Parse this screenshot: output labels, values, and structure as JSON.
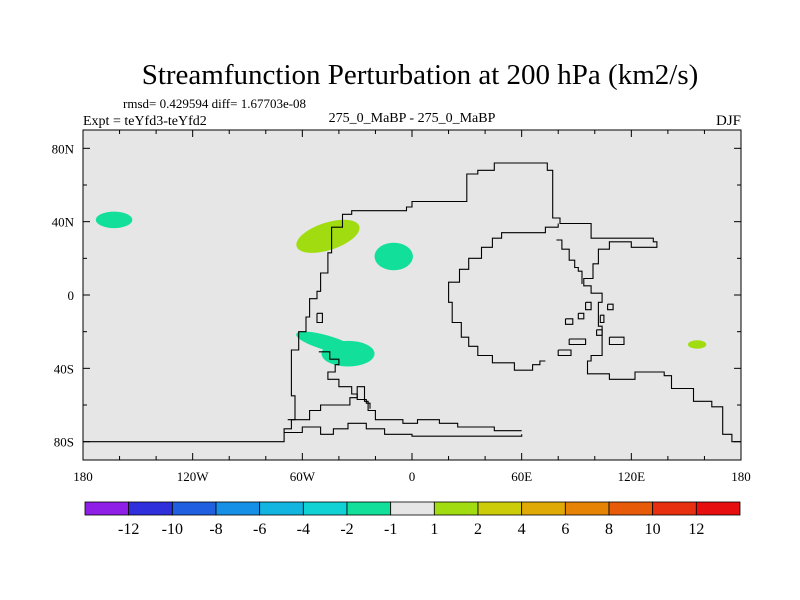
{
  "chart_data": {
    "type": "heatmap",
    "title": "Streamfunction Perturbation at 200 hPa (km2/s)",
    "stats_line": "rmsd= 0.429594 diff= 1.67703e-08",
    "experiment": "Expt = teYfd3-teYfd2",
    "subtitle": "275_0_MaBP - 275_0_MaBP",
    "season": "DJF",
    "x_axis": {
      "range": [
        -180,
        180
      ],
      "ticks": [
        -180,
        -120,
        -60,
        0,
        60,
        120,
        180
      ],
      "tick_labels": [
        "180",
        "120W",
        "60W",
        "0",
        "60E",
        "120E",
        "180"
      ]
    },
    "y_axis": {
      "range": [
        -90,
        90
      ],
      "ticks": [
        80,
        40,
        0,
        -40,
        -80
      ],
      "tick_labels": [
        "80N",
        "40N",
        "0",
        "40S",
        "80S"
      ]
    },
    "colorbar": {
      "labels": [
        "-12",
        "-10",
        "-8",
        "-6",
        "-4",
        "-2",
        "-1",
        "1",
        "2",
        "4",
        "6",
        "8",
        "10",
        "12"
      ],
      "colors": [
        "#8f1fe6",
        "#2f2fdc",
        "#1f5fe0",
        "#1690e6",
        "#12b4e0",
        "#10d2d4",
        "#12e09a",
        "#e6e6e6",
        "#a0dc10",
        "#cccc08",
        "#e0aa06",
        "#e68204",
        "#e65a08",
        "#e63010",
        "#e60e0e"
      ]
    },
    "anomalies": [
      {
        "name": "north-pacific-east",
        "lon": -163,
        "lat": 41,
        "rlon": 10,
        "rlat": 4.5,
        "rot": 0,
        "color": "#12e09a"
      },
      {
        "name": "north-atlantic-west",
        "lon": -46,
        "lat": 32,
        "rlon": 18,
        "rlat": 7.5,
        "rot": -18,
        "color": "#a0dc10"
      },
      {
        "name": "north-atlantic-east",
        "lon": -10,
        "lat": 21,
        "rlon": 10.5,
        "rlat": 7.5,
        "rot": 0,
        "color": "#12e09a"
      },
      {
        "name": "south-atlantic-tail",
        "lon": -47,
        "lat": -26,
        "rlon": 17,
        "rlat": 4,
        "rot": 16,
        "color": "#12e09a"
      },
      {
        "name": "south-atlantic",
        "lon": -35,
        "lat": -32,
        "rlon": 14.5,
        "rlat": 7,
        "rot": 0,
        "color": "#12e09a"
      },
      {
        "name": "south-pacific-west",
        "lon": 156,
        "lat": -27,
        "rlon": 5,
        "rlat": 2.3,
        "rot": 0,
        "color": "#a0dc10"
      }
    ],
    "coastlines": [
      {
        "name": "main-continent-outline",
        "points": [
          [
            -180,
            -80
          ],
          [
            -70,
            -80
          ],
          [
            -70,
            -73
          ],
          [
            -66,
            -73
          ],
          [
            -66,
            -68
          ],
          [
            -64,
            -68
          ],
          [
            -64,
            -55
          ],
          [
            -66,
            -55
          ],
          [
            -66,
            -30
          ],
          [
            -62,
            -30
          ],
          [
            -62,
            -20
          ],
          [
            -58,
            -20
          ],
          [
            -58,
            -12
          ],
          [
            -56,
            -12
          ],
          [
            -56,
            -2
          ],
          [
            -52,
            -2
          ],
          [
            -52,
            2
          ],
          [
            -50,
            2
          ],
          [
            -50,
            12
          ],
          [
            -46,
            12
          ],
          [
            -46,
            23
          ],
          [
            -44,
            23
          ],
          [
            -44,
            37
          ],
          [
            -38,
            37
          ],
          [
            -38,
            44
          ],
          [
            -33,
            44
          ],
          [
            -33,
            46
          ],
          [
            -3,
            46
          ],
          [
            -3,
            48
          ],
          [
            0,
            48
          ],
          [
            0,
            51
          ],
          [
            30,
            51
          ],
          [
            30,
            66
          ],
          [
            36,
            66
          ],
          [
            36,
            68
          ],
          [
            45,
            68
          ],
          [
            45,
            72
          ],
          [
            74,
            72
          ],
          [
            74,
            68
          ],
          [
            77,
            68
          ],
          [
            77,
            42
          ],
          [
            81,
            42
          ],
          [
            81,
            39
          ],
          [
            98,
            39
          ],
          [
            98,
            31
          ],
          [
            132,
            31
          ],
          [
            132,
            29
          ],
          [
            134,
            29
          ],
          [
            134,
            26
          ],
          [
            120,
            26
          ],
          [
            120,
            29
          ],
          [
            108,
            29
          ],
          [
            108,
            25
          ],
          [
            102,
            25
          ],
          [
            102,
            17
          ],
          [
            99,
            17
          ],
          [
            99,
            9
          ],
          [
            94,
            9
          ],
          [
            94,
            5
          ],
          [
            98,
            5
          ],
          [
            98,
            1
          ],
          [
            104,
            1
          ],
          [
            104,
            -4
          ],
          [
            102,
            -4
          ],
          [
            102,
            -17
          ],
          [
            104,
            -17
          ],
          [
            104,
            -33
          ],
          [
            98,
            -33
          ],
          [
            98,
            -36
          ],
          [
            96,
            -36
          ],
          [
            96,
            -43
          ],
          [
            108,
            -43
          ],
          [
            108,
            -46
          ],
          [
            122,
            -46
          ],
          [
            122,
            -42
          ],
          [
            138,
            -42
          ],
          [
            138,
            -44
          ],
          [
            142,
            -44
          ],
          [
            142,
            -51
          ],
          [
            154,
            -51
          ],
          [
            154,
            -58
          ],
          [
            164,
            -58
          ],
          [
            164,
            -61
          ],
          [
            170,
            -61
          ],
          [
            170,
            -76
          ],
          [
            175,
            -76
          ],
          [
            175,
            -80
          ],
          [
            180,
            -80
          ]
        ]
      },
      {
        "name": "africa-west-coast",
        "points": [
          [
            80,
            39
          ],
          [
            80,
            37
          ],
          [
            73,
            37
          ],
          [
            73,
            34
          ],
          [
            49,
            34
          ],
          [
            49,
            31
          ],
          [
            44,
            31
          ],
          [
            44,
            26
          ],
          [
            38,
            26
          ],
          [
            38,
            20
          ],
          [
            31,
            20
          ],
          [
            31,
            14
          ],
          [
            26,
            14
          ],
          [
            26,
            7
          ],
          [
            20,
            7
          ],
          [
            20,
            -4
          ],
          [
            22,
            -4
          ],
          [
            22,
            -15
          ],
          [
            27,
            -15
          ],
          [
            27,
            -23
          ],
          [
            31,
            -23
          ],
          [
            31,
            -28
          ],
          [
            36,
            -28
          ],
          [
            36,
            -33
          ],
          [
            44,
            -33
          ],
          [
            44,
            -37
          ],
          [
            56,
            -37
          ],
          [
            56,
            -41
          ],
          [
            66,
            -41
          ],
          [
            66,
            -38
          ],
          [
            70,
            -38
          ],
          [
            70,
            -36
          ],
          [
            73,
            -36
          ]
        ]
      },
      {
        "name": "arabian-coast",
        "points": [
          [
            79,
            30
          ],
          [
            82,
            30
          ],
          [
            82,
            25
          ],
          [
            86,
            25
          ],
          [
            86,
            19
          ],
          [
            89,
            19
          ],
          [
            89,
            15
          ],
          [
            91,
            15
          ],
          [
            91,
            13
          ],
          [
            93,
            13
          ],
          [
            93,
            6
          ]
        ]
      },
      {
        "name": "south-atlantic-coast",
        "points": [
          [
            -51,
            -31
          ],
          [
            -45,
            -31
          ],
          [
            -45,
            -35
          ],
          [
            -40,
            -35
          ],
          [
            -40,
            -38
          ],
          [
            -42,
            -38
          ],
          [
            -42,
            -42
          ],
          [
            -46,
            -42
          ],
          [
            -46,
            -46
          ],
          [
            -40,
            -46
          ],
          [
            -40,
            -50
          ],
          [
            -33,
            -50
          ],
          [
            -33,
            -54
          ],
          [
            -30,
            -54
          ],
          [
            -30,
            -57
          ],
          [
            -25,
            -57
          ],
          [
            -25,
            -59
          ],
          [
            -23,
            -59
          ],
          [
            -23,
            -62
          ]
        ]
      },
      {
        "name": "inner-ridge-upper",
        "points": [
          [
            -68,
            -68
          ],
          [
            -56,
            -68
          ],
          [
            -56,
            -63
          ],
          [
            -50,
            -63
          ],
          [
            -50,
            -60
          ],
          [
            -34,
            -60
          ],
          [
            -34,
            -56
          ],
          [
            -30,
            -56
          ],
          [
            -30,
            -50
          ],
          [
            -26,
            -50
          ],
          [
            -26,
            -58
          ],
          [
            -24,
            -58
          ],
          [
            -24,
            -63
          ],
          [
            -20,
            -63
          ],
          [
            -20,
            -68
          ],
          [
            -5,
            -68
          ],
          [
            -5,
            -70
          ],
          [
            3,
            -70
          ],
          [
            3,
            -68
          ],
          [
            15,
            -68
          ],
          [
            15,
            -70
          ],
          [
            25,
            -70
          ],
          [
            25,
            -72
          ],
          [
            45,
            -72
          ],
          [
            45,
            -74
          ],
          [
            60,
            -74
          ]
        ]
      },
      {
        "name": "inner-ridge-lower",
        "points": [
          [
            -70,
            -75
          ],
          [
            -60,
            -75
          ],
          [
            -60,
            -72
          ],
          [
            -50,
            -72
          ],
          [
            -50,
            -76
          ],
          [
            -43,
            -76
          ],
          [
            -43,
            -73
          ],
          [
            -35,
            -73
          ],
          [
            -35,
            -70
          ],
          [
            -25,
            -70
          ],
          [
            -25,
            -73
          ],
          [
            -15,
            -73
          ],
          [
            -15,
            -76
          ],
          [
            0,
            -76
          ],
          [
            0,
            -77
          ],
          [
            60,
            -77
          ],
          [
            60,
            -76
          ]
        ]
      },
      {
        "name": "caribbean-island",
        "points": [
          [
            -52,
            -10
          ],
          [
            -49,
            -10
          ],
          [
            -49,
            -15
          ],
          [
            -52,
            -15
          ],
          [
            -52,
            -10
          ]
        ]
      },
      {
        "name": "island-a",
        "points": [
          [
            95,
            -4
          ],
          [
            98,
            -4
          ],
          [
            98,
            -8
          ],
          [
            95,
            -8
          ],
          [
            95,
            -4
          ]
        ]
      },
      {
        "name": "island-b",
        "points": [
          [
            91,
            -10
          ],
          [
            94,
            -10
          ],
          [
            94,
            -13
          ],
          [
            91,
            -13
          ],
          [
            91,
            -10
          ]
        ]
      },
      {
        "name": "island-c",
        "points": [
          [
            101,
            -19
          ],
          [
            104,
            -19
          ],
          [
            104,
            -22
          ],
          [
            101,
            -22
          ],
          [
            101,
            -19
          ]
        ]
      },
      {
        "name": "island-d",
        "points": [
          [
            86,
            -24
          ],
          [
            95,
            -24
          ],
          [
            95,
            -27
          ],
          [
            86,
            -27
          ],
          [
            86,
            -24
          ]
        ]
      },
      {
        "name": "island-e",
        "points": [
          [
            107,
            -5
          ],
          [
            110,
            -5
          ],
          [
            110,
            -8
          ],
          [
            107,
            -8
          ],
          [
            107,
            -5
          ]
        ]
      },
      {
        "name": "island-f",
        "points": [
          [
            108,
            -23
          ],
          [
            116,
            -23
          ],
          [
            116,
            -27
          ],
          [
            108,
            -27
          ],
          [
            108,
            -23
          ]
        ]
      },
      {
        "name": "island-g",
        "points": [
          [
            84,
            -13
          ],
          [
            88,
            -13
          ],
          [
            88,
            -16
          ],
          [
            84,
            -16
          ],
          [
            84,
            -13
          ]
        ]
      },
      {
        "name": "island-h",
        "points": [
          [
            103,
            -11
          ],
          [
            105,
            -11
          ],
          [
            105,
            -15
          ],
          [
            103,
            -15
          ],
          [
            103,
            -11
          ]
        ]
      },
      {
        "name": "island-i",
        "points": [
          [
            80,
            -30
          ],
          [
            87,
            -30
          ],
          [
            87,
            -33
          ],
          [
            80,
            -33
          ],
          [
            80,
            -30
          ]
        ]
      }
    ]
  }
}
